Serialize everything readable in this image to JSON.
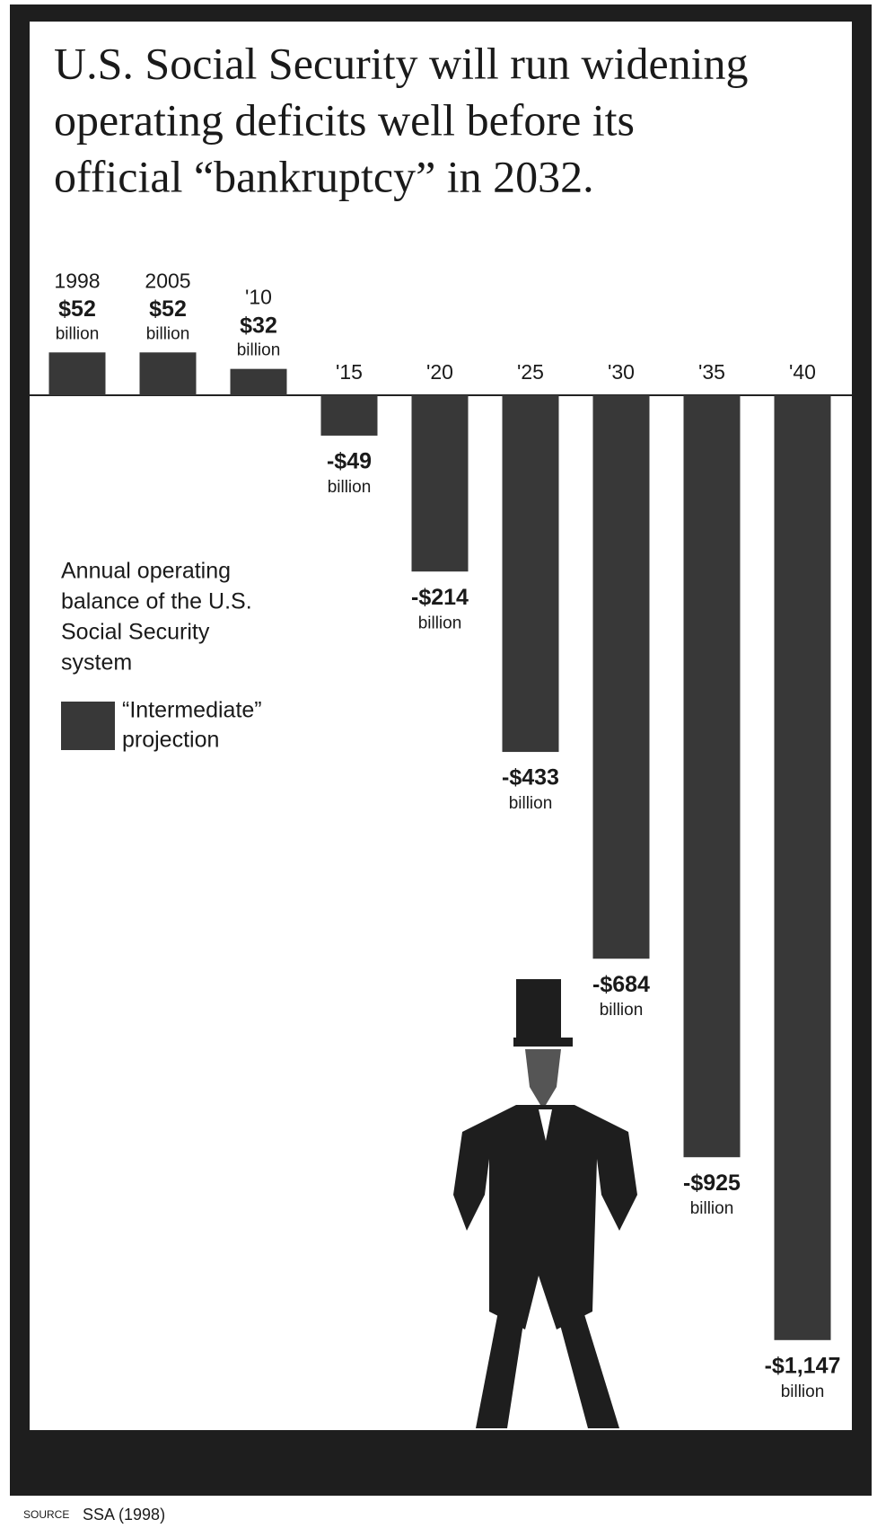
{
  "chart_data": {
    "type": "bar",
    "title": [
      "U.S. Social Security will run widening",
      "operating deficits well before its",
      "official “bankruptcy” in 2032."
    ],
    "categories": [
      "1998",
      "2005",
      "'10",
      "'15",
      "'20",
      "'25",
      "'30",
      "'35",
      "'40"
    ],
    "series": [
      {
        "name": [
          "“Intermediate”",
          "projection"
        ],
        "color": "#383838",
        "values": [
          52,
          52,
          32,
          -49,
          -214,
          -433,
          -684,
          -925,
          -1147
        ],
        "value_labels": [
          "$52",
          "$52",
          "$32",
          "-$49",
          "-$214",
          "-$433",
          "-$684",
          "-$925",
          "-$1,147"
        ]
      }
    ],
    "unit_label": "billion",
    "legend_title": [
      "Annual operating",
      "balance of the U.S.",
      "Social Security",
      "system"
    ],
    "source_label": "SOURCE",
    "source": "SSA (1998)"
  }
}
